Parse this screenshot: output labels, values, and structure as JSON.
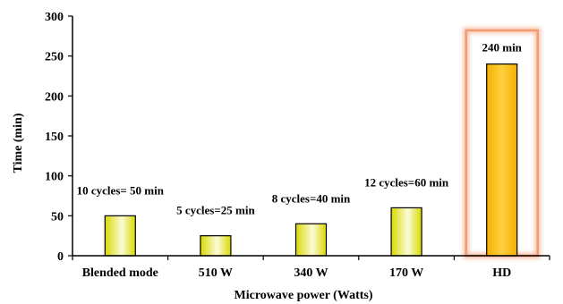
{
  "chart_data": {
    "type": "bar",
    "categories": [
      "Blended mode",
      "510 W",
      "340 W",
      "170 W",
      "HD"
    ],
    "values": [
      50,
      25,
      40,
      60,
      240
    ],
    "data_labels": [
      "10 cycles= 50 min",
      "5 cycles=25 min",
      "8 cycles=40 min",
      "12 cycles=60 min",
      "240 min"
    ],
    "xlabel": "Microwave power (Watts)",
    "ylabel": "Time  (min)",
    "ylim": [
      0,
      300
    ],
    "yticks": [
      0,
      50,
      100,
      150,
      200,
      250,
      300
    ],
    "grid": false,
    "highlighted_category": "HD",
    "colors": {
      "bar_gradient_light": "#fbfbd8",
      "bar_gradient_dark": "#d9d900",
      "highlight_bar_light": "#ffd040",
      "highlight_bar_dark": "#f5b000",
      "highlight_frame": "#f49a72"
    }
  }
}
